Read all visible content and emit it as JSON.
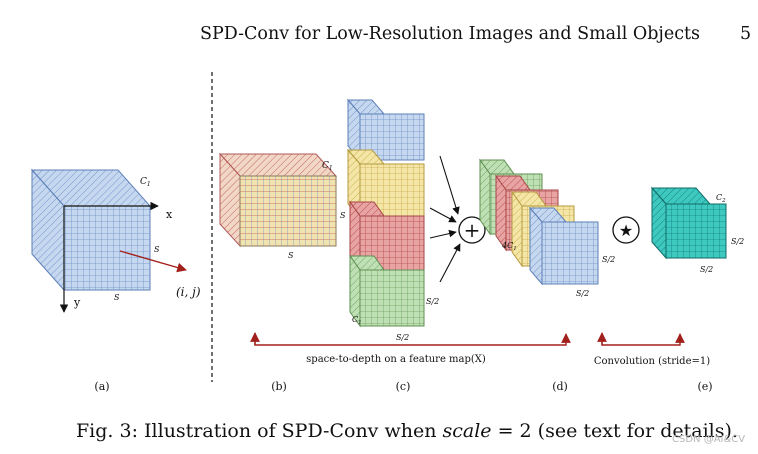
{
  "header": {
    "running_title": "SPD-Conv for Low-Resolution Images and Small Objects",
    "page_number": "5"
  },
  "figure": {
    "labels": {
      "c1": "C",
      "c1_sub": "1",
      "c2_sub": "2",
      "s": "S",
      "s_half": "S/2",
      "x_axis": "x",
      "y_axis": "y",
      "ij": "(i, j)",
      "four_c1": "4C",
      "plus": "+",
      "star": "★"
    },
    "panel_labels": [
      "(a)",
      "(b)",
      "(c)",
      "(d)",
      "(e)"
    ],
    "annotations": {
      "space_to_depth": "space-to-depth on a feature map(X)",
      "convolution": "Convolution (stride=1)"
    },
    "colors": {
      "blue": "#c5d8f0",
      "blue_line": "#6f8fc4",
      "yellow": "#f4e6a6",
      "yellow_line": "#c9a94a",
      "red": "#e8a3a3",
      "red_line": "#b44848",
      "green": "#bfe0b4",
      "green_line": "#6d9e5f",
      "teal": "#3ec9c0",
      "teal_line": "#12807a",
      "arrow_red": "#a2201c"
    }
  },
  "caption": {
    "prefix": "Fig. 3: Illustration of SPD-Conv when ",
    "math": "scale",
    "suffix": " = 2 (see text for details)."
  },
  "watermark": "CSDN @AI&CV"
}
